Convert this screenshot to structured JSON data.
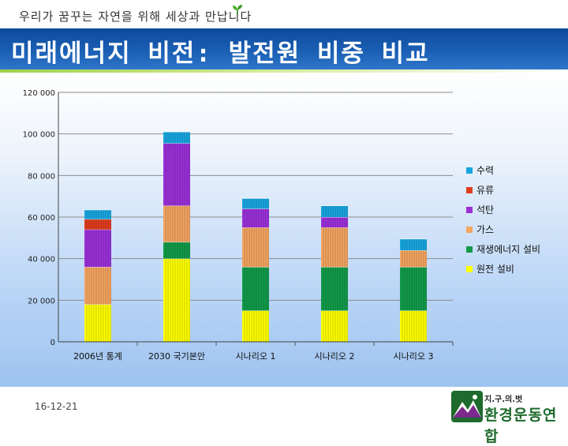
{
  "header": {
    "slogan": "우리가 꿈꾸는 자연을 위해 세상과 만납니다",
    "title": "미래에너지 비전: 발전원 비중 비교"
  },
  "footer": {
    "date": "16-12-21",
    "logo_top": "지.구.의.벗",
    "logo_main": "환경운동연합"
  },
  "colors": {
    "title_bar": "#1a5fb4",
    "accent_line": "#9fd14a"
  },
  "icons": {
    "sprout": "sprout-icon",
    "logo": "ecology-mountain-logo-icon"
  },
  "chart_data": {
    "type": "bar",
    "stacked": true,
    "categories": [
      "2006년 통계",
      "2030 국기본안",
      "시나리오 1",
      "시나리오 2",
      "시나리오 3"
    ],
    "ylim": [
      0,
      120000
    ],
    "yticks": [
      0,
      20000,
      40000,
      60000,
      80000,
      100000,
      120000
    ],
    "ytick_labels": [
      "0",
      "20 000",
      "40 000",
      "60 000",
      "80 000",
      "100 000",
      "120 000"
    ],
    "grid": true,
    "legend_position": "right",
    "series": [
      {
        "name": "원전 설비",
        "color": "#ffff00",
        "values": [
          18000,
          40000,
          15000,
          15000,
          15000
        ]
      },
      {
        "name": "재생에너지 설비",
        "color": "#129a4a",
        "values": [
          0,
          8000,
          21000,
          21000,
          21000
        ]
      },
      {
        "name": "가스",
        "color": "#f4a460",
        "values": [
          18000,
          17500,
          19000,
          19000,
          8000
        ]
      },
      {
        "name": "석탄",
        "color": "#9b30d8",
        "values": [
          18000,
          30000,
          9000,
          5000,
          0
        ]
      },
      {
        "name": "유류",
        "color": "#e03c1e",
        "values": [
          5000,
          0,
          0,
          0,
          0
        ]
      },
      {
        "name": "수력",
        "color": "#18a6e0",
        "values": [
          4500,
          5500,
          5000,
          5500,
          5500
        ]
      }
    ],
    "legend_order": [
      "수력",
      "유류",
      "석탄",
      "가스",
      "재생에너지 설비",
      "원전 설비"
    ]
  }
}
